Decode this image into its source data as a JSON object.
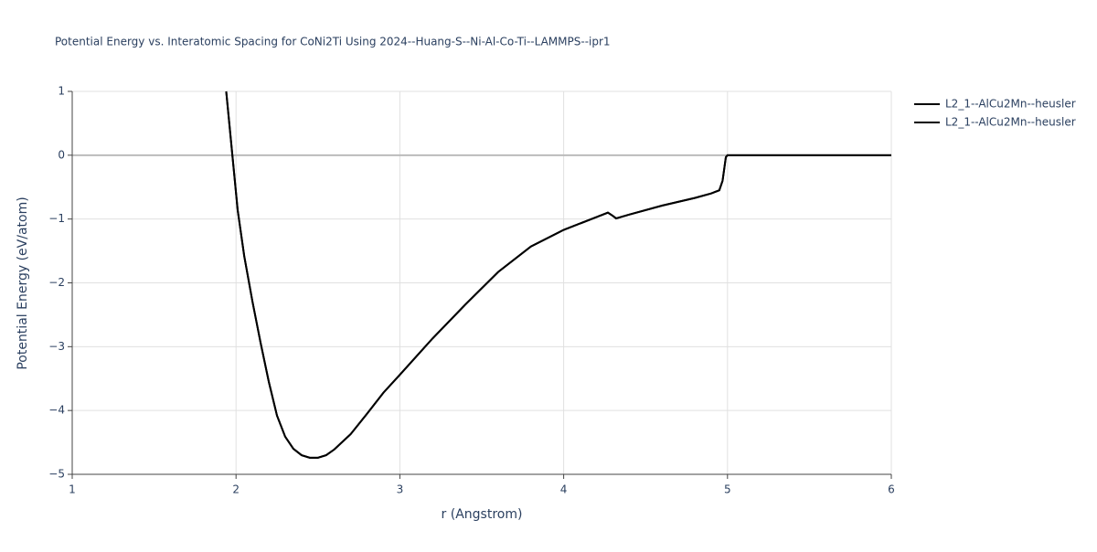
{
  "chart_data": {
    "type": "line",
    "title": "Potential Energy vs. Interatomic Spacing for CoNi2Ti Using 2024--Huang-S--Ni-Al-Co-Ti--LAMMPS--ipr1",
    "xlabel": "r (Angstrom)",
    "ylabel": "Potential Energy (eV/atom)",
    "x": [
      1.94,
      2.01,
      2.05,
      2.1,
      2.15,
      2.2,
      2.25,
      2.3,
      2.35,
      2.4,
      2.45,
      2.5,
      2.55,
      2.6,
      2.7,
      2.8,
      2.9,
      3.0,
      3.2,
      3.4,
      3.6,
      3.8,
      4.0,
      4.2,
      4.27,
      4.3,
      4.32,
      4.4,
      4.6,
      4.8,
      4.9,
      4.95,
      4.97,
      4.99,
      5.0,
      6.0
    ],
    "series": [
      {
        "name": "L2_1--AlCu2Mn--heusler",
        "color": "#000000",
        "values": [
          1.0,
          -0.86,
          -1.58,
          -2.29,
          -2.94,
          -3.55,
          -4.08,
          -4.41,
          -4.6,
          -4.7,
          -4.74,
          -4.74,
          -4.7,
          -4.61,
          -4.37,
          -4.05,
          -3.72,
          -3.44,
          -2.87,
          -2.34,
          -1.83,
          -1.43,
          -1.17,
          -0.97,
          -0.9,
          -0.95,
          -0.99,
          -0.93,
          -0.79,
          -0.67,
          -0.6,
          -0.55,
          -0.4,
          -0.03,
          0,
          0
        ]
      },
      {
        "name": "L2_1--AlCu2Mn--heusler",
        "color": "#000000",
        "values": [
          1.0,
          -0.86,
          -1.58,
          -2.29,
          -2.94,
          -3.55,
          -4.08,
          -4.41,
          -4.6,
          -4.7,
          -4.74,
          -4.74,
          -4.7,
          -4.61,
          -4.37,
          -4.05,
          -3.72,
          -3.44,
          -2.87,
          -2.34,
          -1.83,
          -1.43,
          -1.17,
          -0.97,
          -0.9,
          -0.95,
          -0.99,
          -0.93,
          -0.79,
          -0.67,
          -0.6,
          -0.55,
          -0.4,
          -0.03,
          0,
          0
        ]
      }
    ],
    "xlim": [
      1,
      6
    ],
    "xticks": [
      1,
      2,
      3,
      4,
      5,
      6
    ],
    "ylim": [
      -5,
      1
    ],
    "yticks": [
      {
        "value": -5,
        "label": "−5"
      },
      {
        "value": -4,
        "label": "−4"
      },
      {
        "value": -3,
        "label": "−3"
      },
      {
        "value": -2,
        "label": "−2"
      },
      {
        "value": -1,
        "label": "−1"
      },
      0,
      1
    ],
    "grid": true,
    "legend": "right"
  }
}
